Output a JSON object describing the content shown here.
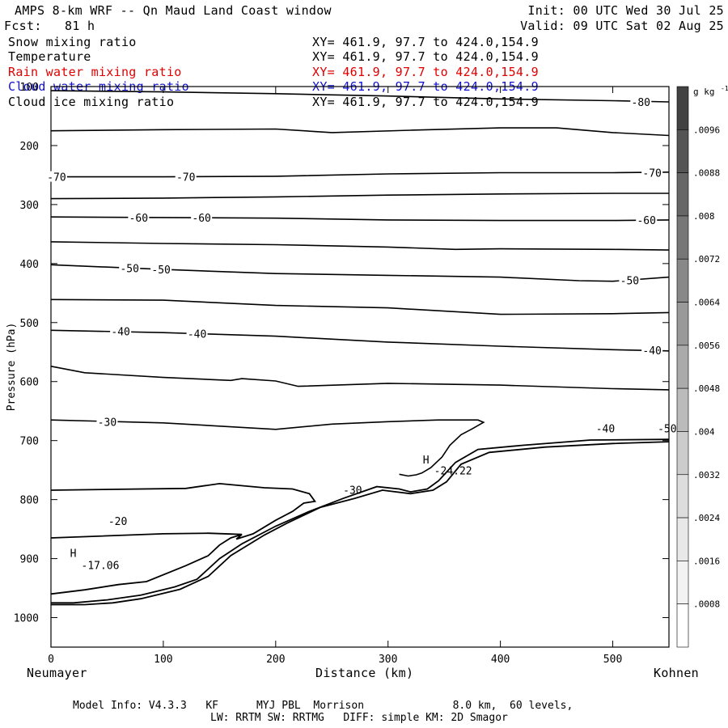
{
  "header": {
    "title": "AMPS 8-km WRF -- Qn Maud Land Coast window",
    "init": "Init: 00 UTC Wed 30 Jul 25",
    "fcst_label": "Fcst:",
    "fcst_value": "81 h",
    "valid": "Valid: 09 UTC Sat 02 Aug 25"
  },
  "fields": [
    {
      "name": "Snow mixing ratio",
      "xy": "XY= 461.9, 97.7 to 424.0,154.9",
      "color": "#000000"
    },
    {
      "name": "Temperature",
      "xy": "XY= 461.9, 97.7 to 424.0,154.9",
      "color": "#000000"
    },
    {
      "name": "Rain water mixing ratio",
      "xy": "XY= 461.9, 97.7 to 424.0,154.9",
      "color": "#e00000"
    },
    {
      "name": "Cloud water mixing ratio",
      "xy": "XY= 461.9, 97.7 to 424.0,154.9",
      "color": "#1010d0"
    },
    {
      "name": "Cloud ice mixing ratio",
      "xy": "XY= 461.9, 97.7 to 424.0,154.9",
      "color": "#000000"
    }
  ],
  "footer": {
    "line1": "Model Info: V4.3.3   KF      MYJ PBL  Morrison              8.0 km,  60 levels,",
    "line2": "LW: RRTM SW: RRTMG   DIFF: simple KM: 2D Smagor"
  },
  "chart_data": {
    "type": "contour",
    "xlabel": "Distance (km)",
    "ylabel": "Pressure (hPa)",
    "xlim": [
      0,
      550
    ],
    "ylim": [
      1050,
      100
    ],
    "x_ticks": [
      0,
      100,
      200,
      300,
      400,
      500
    ],
    "y_ticks": [
      100,
      200,
      300,
      400,
      500,
      600,
      700,
      800,
      900,
      1000
    ],
    "x_end_labels": {
      "left": "Neumayer",
      "right": "Kohnen"
    },
    "colorbar": {
      "unit": "g kg",
      "unit_exp": "-1",
      "ticks": [
        ".0096",
        ".0088",
        ".008",
        ".0072",
        ".0064",
        ".0056",
        ".0048",
        ".004",
        ".0032",
        ".0024",
        ".0016",
        ".0008"
      ],
      "shades": [
        "#424242",
        "#555555",
        "#666666",
        "#777777",
        "#888888",
        "#999999",
        "#aaaaaa",
        "#bbbbbb",
        "#cccccc",
        "#dddddd",
        "#e8e8e8",
        "#f2f2f2",
        "#ffffff"
      ]
    },
    "temperature_isotherms": [
      {
        "level": -80,
        "points": [
          [
            0,
            107
          ],
          [
            100,
            109
          ],
          [
            200,
            112
          ],
          [
            300,
            116
          ],
          [
            400,
            121
          ],
          [
            500,
            124
          ],
          [
            550,
            126
          ]
        ],
        "labels": [
          [
            525,
            126
          ]
        ]
      },
      {
        "level": -75,
        "points": [
          [
            0,
            175
          ],
          [
            100,
            173
          ],
          [
            200,
            172
          ],
          [
            250,
            178
          ],
          [
            320,
            174
          ],
          [
            400,
            170
          ],
          [
            450,
            170
          ],
          [
            500,
            178
          ],
          [
            550,
            183
          ]
        ],
        "labels": []
      },
      {
        "level": -70,
        "points": [
          [
            0,
            253
          ],
          [
            100,
            253
          ],
          [
            200,
            252
          ],
          [
            300,
            248
          ],
          [
            400,
            246
          ],
          [
            500,
            246
          ],
          [
            550,
            245
          ]
        ],
        "labels": [
          [
            5,
            253
          ],
          [
            120,
            253
          ],
          [
            535,
            246
          ]
        ]
      },
      {
        "level": -65,
        "points": [
          [
            0,
            290
          ],
          [
            100,
            289
          ],
          [
            200,
            287
          ],
          [
            300,
            284
          ],
          [
            400,
            282
          ],
          [
            500,
            281
          ],
          [
            550,
            281
          ]
        ],
        "labels": []
      },
      {
        "level": -60,
        "points": [
          [
            0,
            321
          ],
          [
            100,
            322
          ],
          [
            200,
            323
          ],
          [
            300,
            326
          ],
          [
            400,
            327
          ],
          [
            500,
            327
          ],
          [
            550,
            326
          ]
        ],
        "labels": [
          [
            78,
            322
          ],
          [
            134,
            322
          ],
          [
            530,
            326
          ]
        ]
      },
      {
        "level": -55,
        "points": [
          [
            0,
            363
          ],
          [
            100,
            366
          ],
          [
            200,
            368
          ],
          [
            300,
            372
          ],
          [
            360,
            376
          ],
          [
            400,
            375
          ],
          [
            500,
            376
          ],
          [
            550,
            377
          ]
        ],
        "labels": []
      },
      {
        "level": -50,
        "points": [
          [
            0,
            402
          ],
          [
            100,
            410
          ],
          [
            200,
            417
          ],
          [
            300,
            420
          ],
          [
            400,
            423
          ],
          [
            470,
            429
          ],
          [
            500,
            430
          ],
          [
            550,
            423
          ]
        ],
        "labels": [
          [
            70,
            408
          ],
          [
            98,
            410
          ],
          [
            515,
            428
          ]
        ]
      },
      {
        "level": -45,
        "points": [
          [
            0,
            461
          ],
          [
            100,
            462
          ],
          [
            200,
            471
          ],
          [
            300,
            475
          ],
          [
            400,
            486
          ],
          [
            500,
            485
          ],
          [
            550,
            483
          ]
        ],
        "labels": []
      },
      {
        "level": -40,
        "points": [
          [
            0,
            513
          ],
          [
            100,
            517
          ],
          [
            200,
            523
          ],
          [
            300,
            533
          ],
          [
            400,
            540
          ],
          [
            500,
            546
          ],
          [
            550,
            548
          ]
        ],
        "labels": [
          [
            62,
            515
          ],
          [
            130,
            519
          ],
          [
            535,
            547
          ]
        ]
      },
      {
        "level": -35,
        "points": [
          [
            0,
            574
          ],
          [
            30,
            585
          ],
          [
            100,
            593
          ],
          [
            160,
            598
          ],
          [
            170,
            595
          ],
          [
            200,
            599
          ],
          [
            220,
            608
          ],
          [
            300,
            603
          ],
          [
            400,
            606
          ],
          [
            500,
            612
          ],
          [
            550,
            614
          ]
        ],
        "labels": []
      },
      {
        "level": -30,
        "points": [
          [
            0,
            665
          ],
          [
            100,
            670
          ],
          [
            200,
            681
          ],
          [
            250,
            672
          ],
          [
            300,
            668
          ],
          [
            345,
            665
          ],
          [
            380,
            665
          ],
          [
            385,
            669
          ],
          [
            375,
            680
          ],
          [
            365,
            690
          ],
          [
            355,
            708
          ],
          [
            348,
            728
          ],
          [
            338,
            746
          ],
          [
            330,
            755
          ],
          [
            325,
            758
          ],
          [
            318,
            760
          ],
          [
            310,
            757
          ]
        ],
        "labels": [
          [
            50,
            668
          ]
        ]
      }
    ],
    "annotations": [
      {
        "text": "H",
        "x": 17,
        "y": 897
      },
      {
        "text": "-17.06",
        "x": 27,
        "y": 918
      },
      {
        "text": "H",
        "x": 331,
        "y": 739
      },
      {
        "text": "-24.22",
        "x": 341,
        "y": 757
      },
      {
        "text": "-20",
        "x": 51,
        "y": 843
      },
      {
        "text": "-30",
        "x": 260,
        "y": 790
      },
      {
        "text": "-40",
        "x": 485,
        "y": 686
      },
      {
        "text": "-50",
        "x": 540,
        "y": 686
      }
    ],
    "terrain_contours": [
      {
        "points": [
          [
            0,
            975
          ],
          [
            20,
            975
          ],
          [
            50,
            970
          ],
          [
            80,
            962
          ],
          [
            110,
            948
          ],
          [
            130,
            935
          ],
          [
            150,
            900
          ],
          [
            170,
            875
          ],
          [
            200,
            845
          ],
          [
            230,
            820
          ],
          [
            260,
            798
          ],
          [
            290,
            778
          ],
          [
            310,
            782
          ],
          [
            320,
            787
          ],
          [
            335,
            782
          ],
          [
            345,
            768
          ],
          [
            360,
            737
          ],
          [
            380,
            715
          ],
          [
            420,
            708
          ],
          [
            480,
            699
          ],
          [
            550,
            698
          ]
        ]
      },
      {
        "points": [
          [
            0,
            960
          ],
          [
            30,
            953
          ],
          [
            60,
            944
          ],
          [
            85,
            939
          ],
          [
            120,
            912
          ],
          [
            140,
            895
          ],
          [
            150,
            877
          ],
          [
            160,
            865
          ],
          [
            170,
            859
          ],
          [
            165,
            867
          ],
          [
            180,
            858
          ],
          [
            200,
            835
          ],
          [
            215,
            820
          ],
          [
            225,
            806
          ],
          [
            235,
            803
          ],
          [
            230,
            790
          ],
          [
            215,
            782
          ],
          [
            190,
            780
          ],
          [
            150,
            773
          ],
          [
            120,
            781
          ],
          [
            0,
            784
          ]
        ]
      },
      {
        "points": [
          [
            0,
            865
          ],
          [
            100,
            858
          ],
          [
            140,
            857
          ],
          [
            170,
            859
          ]
        ]
      },
      {
        "points": [
          [
            0,
            978
          ],
          [
            30,
            978
          ],
          [
            55,
            975
          ],
          [
            80,
            968
          ],
          [
            115,
            952
          ],
          [
            140,
            930
          ],
          [
            160,
            895
          ],
          [
            190,
            860
          ],
          [
            210,
            840
          ],
          [
            240,
            813
          ],
          [
            270,
            798
          ],
          [
            295,
            784
          ],
          [
            320,
            790
          ],
          [
            340,
            784
          ],
          [
            352,
            770
          ],
          [
            365,
            740
          ],
          [
            390,
            720
          ],
          [
            440,
            711
          ],
          [
            500,
            705
          ],
          [
            550,
            702
          ]
        ]
      }
    ]
  }
}
